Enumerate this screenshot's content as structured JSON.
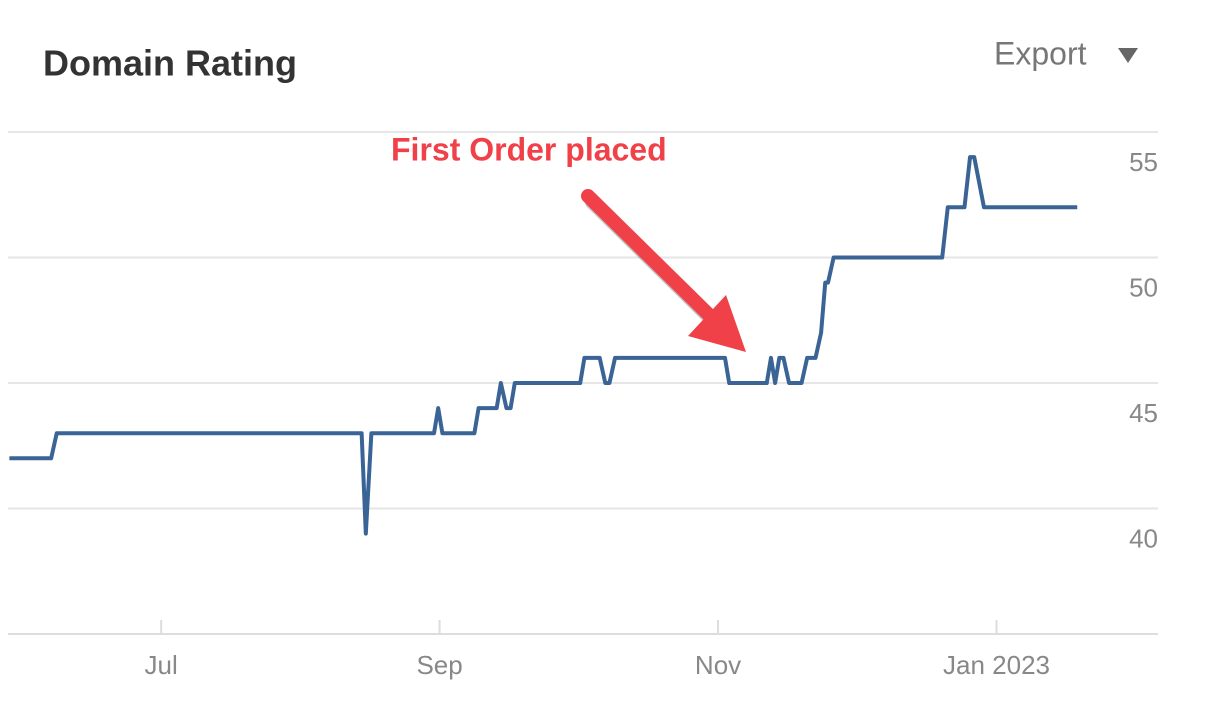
{
  "chart_data": {
    "type": "line",
    "title": "Domain Rating",
    "export_label": "Export",
    "annotation": "First Order placed",
    "x": [
      5.91,
      6.21,
      6.25,
      8.44,
      8.47,
      8.51,
      8.96,
      8.99,
      9.02,
      9.25,
      9.28,
      9.41,
      9.44,
      9.48,
      9.51,
      9.54,
      10.01,
      10.04,
      10.15,
      10.19,
      10.22,
      10.26,
      11.05,
      11.08,
      11.35,
      11.38,
      11.41,
      11.44,
      11.47,
      11.51,
      11.6,
      11.64,
      11.7,
      11.74,
      11.77,
      11.79,
      11.83,
      12.61,
      12.65,
      12.77,
      12.81,
      12.84,
      12.91,
      13.58
    ],
    "values": [
      42,
      42,
      43,
      43,
      39,
      43,
      43,
      44,
      43,
      43,
      44,
      44,
      45,
      44,
      44,
      45,
      45,
      46,
      46,
      45,
      45,
      46,
      46,
      45,
      45,
      46,
      45,
      46,
      46,
      45,
      45,
      46,
      46,
      47,
      49,
      49,
      50,
      50,
      52,
      52,
      54,
      54,
      52,
      52
    ],
    "color": "#3a6496",
    "xlim": [
      5.9,
      14.16
    ],
    "ylim": [
      35,
      55
    ],
    "xticks": [
      {
        "value": 7,
        "label": "Jul"
      },
      {
        "value": 9,
        "label": "Sep"
      },
      {
        "value": 11,
        "label": "Nov"
      },
      {
        "value": 13,
        "label": "Jan 2023"
      }
    ],
    "yticks": [
      40,
      45,
      50,
      55
    ],
    "grid": true
  }
}
